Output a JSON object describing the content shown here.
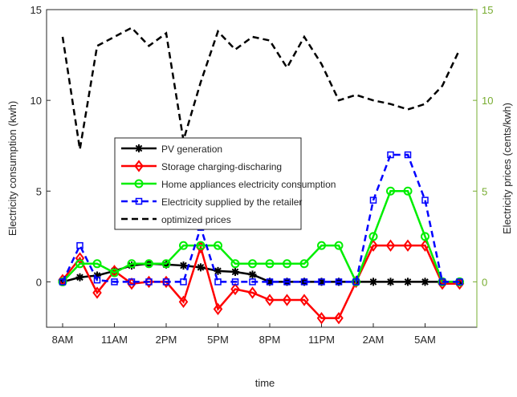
{
  "chart_data": {
    "type": "line",
    "xlabel": "time",
    "ylabel": "Electricity consumption (kwh)",
    "y2label": "Electricity prices (cents/kwh)",
    "categories": [
      "8AM",
      null,
      null,
      "11AM",
      null,
      null,
      "2PM",
      null,
      null,
      "5PM",
      null,
      null,
      "8PM",
      null,
      null,
      "11PM",
      null,
      null,
      "2AM",
      null,
      null,
      "5AM",
      null,
      null
    ],
    "ylim": [
      -2.5,
      15
    ],
    "yticks": [
      0,
      5,
      10,
      15
    ],
    "y2lim": [
      -2.5,
      15
    ],
    "y2ticks": [
      0,
      5,
      10,
      15
    ],
    "y2color": "#77ac30",
    "legend": "center-left",
    "series": [
      {
        "name": "PV generation",
        "color": "#000000",
        "marker": "asterisk",
        "dash": false,
        "values": [
          0,
          0.25,
          0.35,
          0.6,
          0.9,
          1,
          0.95,
          0.9,
          0.8,
          0.6,
          0.55,
          0.4,
          0,
          0,
          0,
          0,
          0,
          0,
          0,
          0,
          0,
          0,
          0,
          0
        ]
      },
      {
        "name": "Storage charging-discharing",
        "color": "#ff0000",
        "marker": "diamond",
        "dash": false,
        "values": [
          0.1,
          1.3,
          -0.6,
          0.6,
          -0.1,
          0,
          0,
          -1.1,
          1.9,
          -1.5,
          -0.4,
          -0.6,
          -1,
          -1,
          -1,
          -2,
          -2,
          0,
          2,
          2,
          2,
          2,
          -0.1,
          -0.1
        ]
      },
      {
        "name": "Home appliances electricity consumption",
        "color": "#00ee00",
        "marker": "circle",
        "dash": false,
        "values": [
          0,
          1,
          1,
          0.5,
          1,
          1,
          1,
          2,
          2,
          2,
          1,
          1,
          1,
          1,
          1,
          2,
          2,
          0,
          2.5,
          5,
          5,
          2.5,
          0,
          0
        ]
      },
      {
        "name": "Electricity supplied by the retailer",
        "color": "#0000ff",
        "marker": "square",
        "dash": true,
        "values": [
          0,
          2,
          0.1,
          0,
          0,
          0,
          0,
          0,
          3,
          0,
          0,
          0,
          0,
          0,
          0,
          0,
          0,
          0,
          4.5,
          7,
          7,
          4.5,
          0,
          0
        ]
      },
      {
        "name": "optimized prices",
        "color": "#000000",
        "marker": "none",
        "dash": true,
        "axis": "y2",
        "values": [
          13.5,
          7.3,
          13,
          13.5,
          14,
          13,
          13.7,
          7.8,
          11,
          13.8,
          12.8,
          13.5,
          13.3,
          11.8,
          13.5,
          12,
          10,
          10.3,
          10,
          9.8,
          9.5,
          9.8,
          10.8,
          12.8
        ]
      }
    ]
  }
}
